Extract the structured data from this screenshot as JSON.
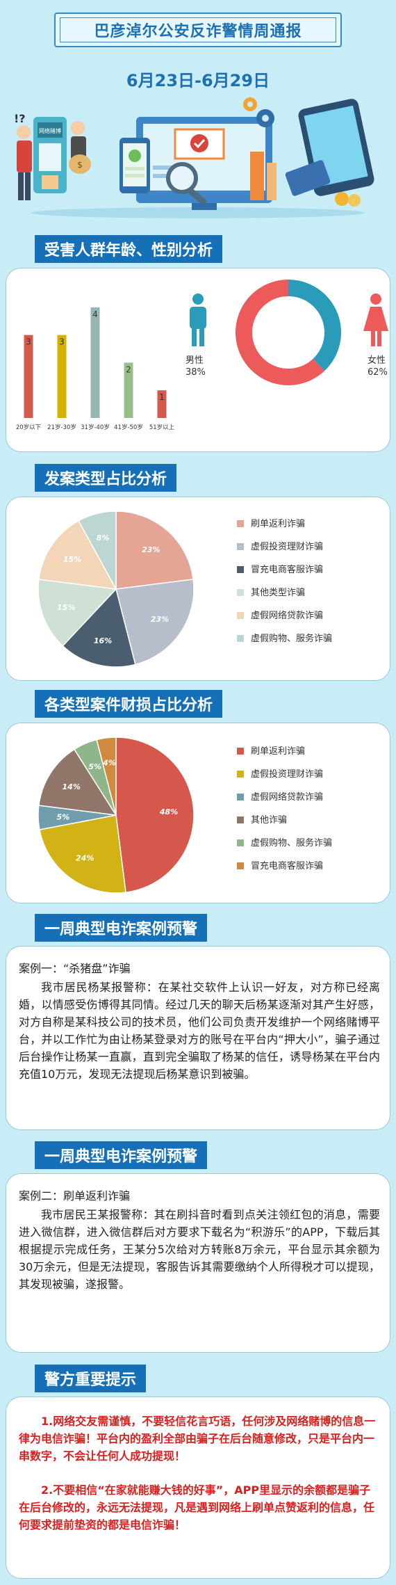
{
  "header": {
    "title": "巴彦淖尔公安反诈警情周通报",
    "date_range": "6月23日-6月29日"
  },
  "sections": {
    "age_gender": "受害人群年龄、性别分析",
    "case_type": "发案类型占比分析",
    "loss": "各类型案件财损占比分析",
    "case1": "一周典型电诈案例预警",
    "case2": "一周典型电诈案例预警",
    "tips": "警方重要提示"
  },
  "chart_data": [
    {
      "type": "bar",
      "categories": [
        "20岁以下",
        "21岁-30岁",
        "31岁-40岁",
        "41岁-50岁",
        "51岁以上"
      ],
      "values": [
        3,
        3,
        4,
        2,
        1
      ],
      "colors": [
        "#d6584c",
        "#d1b300",
        "#96b6b4",
        "#9abe8a",
        "#d6584c"
      ],
      "ylim": [
        0,
        4.4
      ],
      "grid": false
    },
    {
      "type": "pie",
      "donut": true,
      "labels": [
        "男性",
        "女性"
      ],
      "values": [
        38,
        62
      ],
      "display": [
        "38%",
        "62%"
      ],
      "colors": [
        "#2a9bb8",
        "#ed5a5a"
      ]
    },
    {
      "type": "pie",
      "labels": [
        "刷单返利诈骗",
        "虚假投资理财诈骗",
        "冒充电商客服诈骗",
        "其他类型诈骗",
        "虚假网络贷款诈骗",
        "虚假购物、服务诈骗"
      ],
      "values": [
        23,
        23,
        16,
        15,
        15,
        8
      ],
      "display": [
        "23%",
        "23%",
        "16%",
        "15%",
        "15%",
        "8%"
      ],
      "colors": [
        "#e5a594",
        "#b7becb",
        "#4b5e6f",
        "#cfe0d5",
        "#f3d6b7",
        "#bcd6d3"
      ],
      "legend": "right"
    },
    {
      "type": "pie",
      "labels": [
        "刷单返利诈骗",
        "虚假投资理财诈骗",
        "虚假网络贷款诈骗",
        "其他诈骗",
        "虚假购物、服务诈骗",
        "冒充电商客服诈骗"
      ],
      "values": [
        48,
        24,
        5,
        14,
        5,
        4
      ],
      "display": [
        "48%",
        "24%",
        "5%",
        "14%",
        "5%",
        "4%"
      ],
      "colors": [
        "#d6584c",
        "#d1b316",
        "#6f9dac",
        "#8f7668",
        "#8fb58a",
        "#d08a3e"
      ],
      "legend": "right"
    }
  ],
  "case1": {
    "heading": "案例一：“杀猪盘”诈骗",
    "body": "我市居民杨某报警称：在某社交软件上认识一好友，对方称已经离婚，以情感受伤博得其同情。经过几天的聊天后杨某逐渐对其产生好感，对方自称是某科技公司的技术员，他们公司负责开发维护一个网络赌博平台，并以工作忙为由让杨某登录对方的账号在平台内“押大小”，骗子通过后台操作让杨某一直赢，直到完全骗取了杨某的信任，诱导杨某在平台内充值10万元，发现无法提现后杨某意识到被骗。"
  },
  "case2": {
    "heading": "案例二：刷单返利诈骗",
    "body": "我市居民王某报警称：其在刷抖音时看到点关注领红包的消息，需要进入微信群，进入微信群后对方要求下载名为“积游乐”的APP，下载后其根据提示完成任务，王某分5次给对方转账8万余元，平台显示其余额为30万余元，但是无法提现，客服告诉其需要缴纳个人所得税才可以提现，其发现被骗，遂报警。"
  },
  "tips": [
    "1.网络交友需谨慎，不要轻信花言巧语，任何涉及网络赌博的信息一律为电信诈骗！平台内的盈利全部由骗子在后台随意修改，只是平台内一串数字，不会让任何人成功提现！",
    "2.不要相信“在家就能赚大钱的好事”，APP里显示的余额都是骗子在后台修改的，永远无法提现，凡是遇到网络上刷单点赞返利的信息，任何要求提前垫资的都是电信诈骗！"
  ],
  "hero_sign": "网络赌博"
}
